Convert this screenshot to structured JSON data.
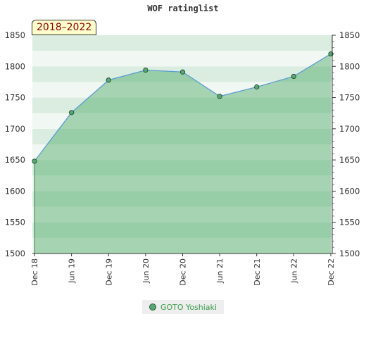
{
  "chart_data": {
    "type": "area",
    "title": "WOF ratinglist",
    "period_label": "2018–2022",
    "xlabel": "",
    "ylabel": "",
    "ylim": [
      1500,
      1850
    ],
    "y_ticks": [
      1500,
      1550,
      1600,
      1650,
      1700,
      1750,
      1800,
      1850
    ],
    "x_ticks": [
      "Dec 18",
      "Jun 19",
      "Dec 19",
      "Jun 20",
      "Dec 20",
      "Jun 21",
      "Dec 21",
      "Jun 22",
      "Dec 22"
    ],
    "series": [
      {
        "name": "GOTO Yoshiaki",
        "color": "#55a870",
        "line_color": "#5b9bd5",
        "values": [
          1648,
          1726,
          1778,
          1794,
          1791,
          1752,
          1767,
          1784,
          1820
        ]
      }
    ],
    "grid": true,
    "legend_position": "bottom"
  }
}
